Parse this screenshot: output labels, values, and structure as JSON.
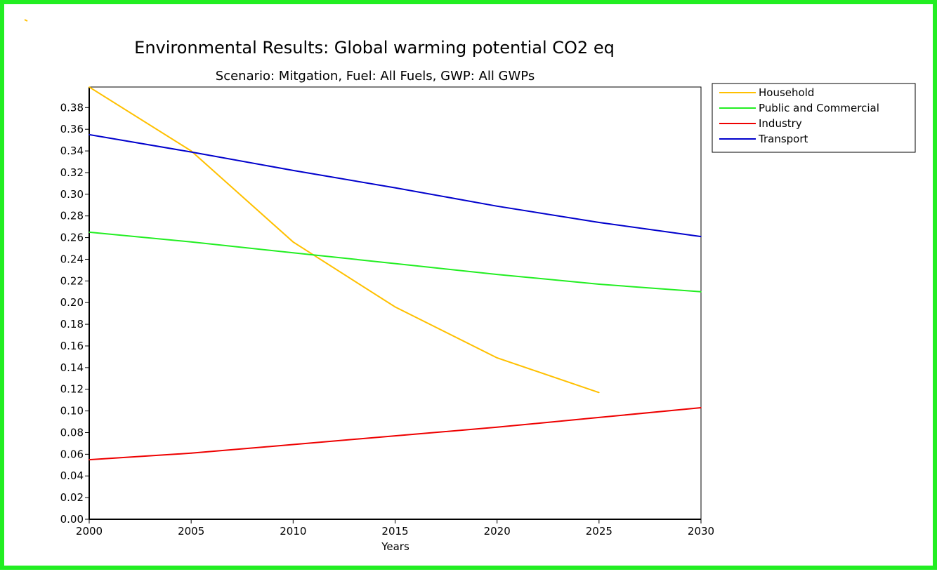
{
  "colors": {
    "frame": "#22ee22"
  },
  "chart_data": {
    "type": "line",
    "title": "Environmental Results: Global warming potential CO2 eq",
    "subtitle": "Scenario: Mitgation, Fuel: All Fuels, GWP: All GWPs",
    "xlabel": "Years",
    "ylabel": "",
    "x_ticks": [
      "2000",
      "2005",
      "2010",
      "2015",
      "2020",
      "2025",
      "2030"
    ],
    "y_ticks": [
      "0.00",
      "0.02",
      "0.04",
      "0.06",
      "0.08",
      "0.10",
      "0.12",
      "0.14",
      "0.16",
      "0.18",
      "0.20",
      "0.22",
      "0.24",
      "0.26",
      "0.28",
      "0.30",
      "0.32",
      "0.34",
      "0.36",
      "0.38"
    ],
    "xlim": [
      2000,
      2030
    ],
    "ylim": [
      0,
      0.399
    ],
    "grid": false,
    "legend_position": "top-right-outside",
    "series": [
      {
        "name": "Household",
        "color": "#ffc000",
        "points": [
          [
            2000,
            0.399
          ],
          [
            2005,
            0.34
          ],
          [
            2010,
            0.256
          ],
          [
            2015,
            0.196
          ],
          [
            2020,
            0.149
          ],
          [
            2025,
            0.117
          ]
        ]
      },
      {
        "name": "Public and Commercial",
        "color": "#22ee22",
        "points": [
          [
            2000,
            0.265
          ],
          [
            2005,
            0.256
          ],
          [
            2010,
            0.246
          ],
          [
            2015,
            0.236
          ],
          [
            2020,
            0.226
          ],
          [
            2025,
            0.217
          ],
          [
            2030,
            0.21
          ]
        ]
      },
      {
        "name": "Industry",
        "color": "#ee0000",
        "points": [
          [
            2000,
            0.055
          ],
          [
            2005,
            0.061
          ],
          [
            2010,
            0.069
          ],
          [
            2015,
            0.077
          ],
          [
            2020,
            0.085
          ],
          [
            2025,
            0.094
          ],
          [
            2030,
            0.103
          ]
        ]
      },
      {
        "name": "Transport",
        "color": "#0000cc",
        "points": [
          [
            2000,
            0.355
          ],
          [
            2005,
            0.339
          ],
          [
            2010,
            0.322
          ],
          [
            2015,
            0.306
          ],
          [
            2020,
            0.289
          ],
          [
            2025,
            0.274
          ],
          [
            2030,
            0.261
          ]
        ]
      }
    ]
  }
}
